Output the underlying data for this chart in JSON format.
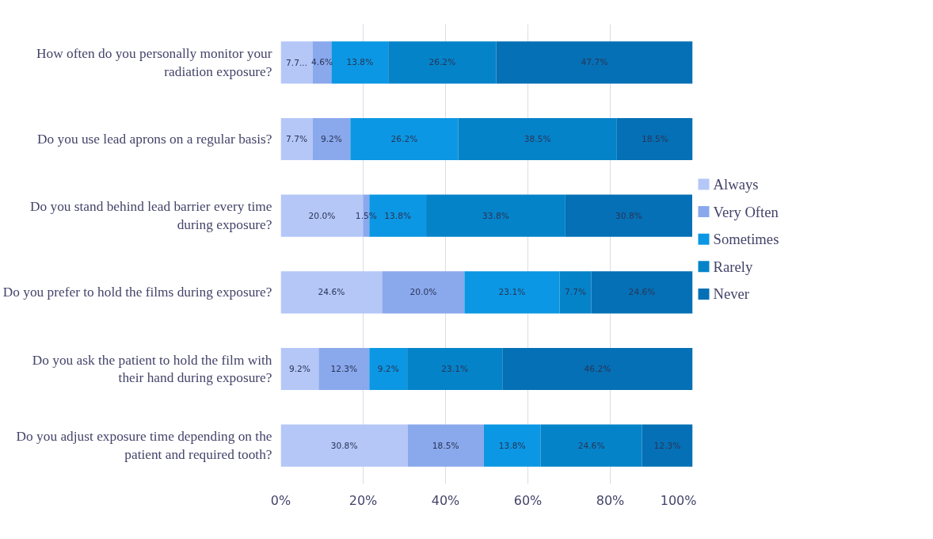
{
  "chart_data": {
    "type": "bar",
    "orientation": "horizontal",
    "stacked": true,
    "grid": "x",
    "legend": "right",
    "categories": [
      "How often do you personally monitor your radiation exposure?",
      "Do you use lead aprons on a regular basis?",
      "Do you stand behind lead barrier every time during exposure?",
      "Do you prefer to hold the films during exposure?",
      "Do you ask the patient to hold the film with their hand during exposure?",
      "Do you adjust exposure time depending on the patient and required tooth?"
    ],
    "xlim": [
      0,
      100
    ],
    "xticks": [
      {
        "value": 0,
        "label": "0%"
      },
      {
        "value": 20,
        "label": "20%"
      },
      {
        "value": 40,
        "label": "40%"
      },
      {
        "value": 60,
        "label": "60%"
      },
      {
        "value": 80,
        "label": "80%"
      },
      {
        "value": 100,
        "label": "100%"
      }
    ],
    "series": [
      {
        "name": "Always",
        "color": "#b4c7f7",
        "values": [
          7.7,
          7.7,
          20.0,
          24.6,
          9.2,
          30.8
        ],
        "value_labels": [
          "7.7...",
          "7.7%",
          "20.0%",
          "24.6%",
          "9.2%",
          "30.8%"
        ]
      },
      {
        "name": "Very Often",
        "color": "#8aa8ec",
        "values": [
          4.6,
          9.2,
          1.5,
          20.0,
          12.3,
          18.5
        ],
        "value_labels": [
          "4.6%",
          "9.2%",
          "1.5%",
          "20.0%",
          "12.3%",
          "18.5%"
        ]
      },
      {
        "name": "Sometimes",
        "color": "#0b97e3",
        "values": [
          13.8,
          26.2,
          13.8,
          23.1,
          9.2,
          13.8
        ],
        "value_labels": [
          "13.8%",
          "26.2%",
          "13.8%",
          "23.1%",
          "9.2%",
          "13.8%"
        ]
      },
      {
        "name": "Rarely",
        "color": "#0583c9",
        "values": [
          26.2,
          38.5,
          33.8,
          7.7,
          23.1,
          24.6
        ],
        "value_labels": [
          "26.2%",
          "38.5%",
          "33.8%",
          "7.7%",
          "23.1%",
          "24.6%"
        ]
      },
      {
        "name": "Never",
        "color": "#0570b5",
        "values": [
          47.7,
          18.5,
          30.8,
          24.6,
          46.2,
          12.3
        ],
        "value_labels": [
          "47.7%",
          "18.5%",
          "30.8%",
          "24.6%",
          "46.2%",
          "12.3%"
        ]
      }
    ]
  }
}
